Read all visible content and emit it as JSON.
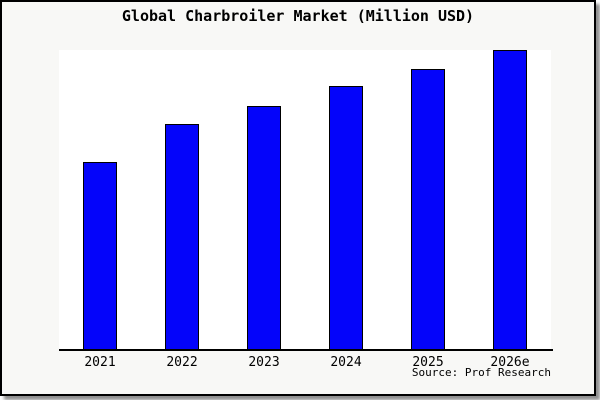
{
  "chart_data": {
    "type": "bar",
    "title": "Global Charbroiler Market (Million USD)",
    "categories": [
      "2021",
      "2022",
      "2023",
      "2024",
      "2025",
      "2026e"
    ],
    "values": [
      62.5,
      75.3,
      81.3,
      87.8,
      93.8,
      100
    ],
    "values_note": "relative bar heights as percent of the tallest (2026e) bar; the y-axis shows no numeric labels, ticks, or gridlines in the image",
    "xlabel": "",
    "ylabel": "",
    "legend": "none",
    "grid": false,
    "source_note": "Source: Prof Research",
    "colors": {
      "bar_fill": "#0404fa",
      "bar_border": "#000000",
      "plot_background": "#ffffff",
      "figure_background": "#f8f8f6",
      "frame_border": "#000000",
      "axis_line": "#000000",
      "text": "#000000"
    }
  }
}
